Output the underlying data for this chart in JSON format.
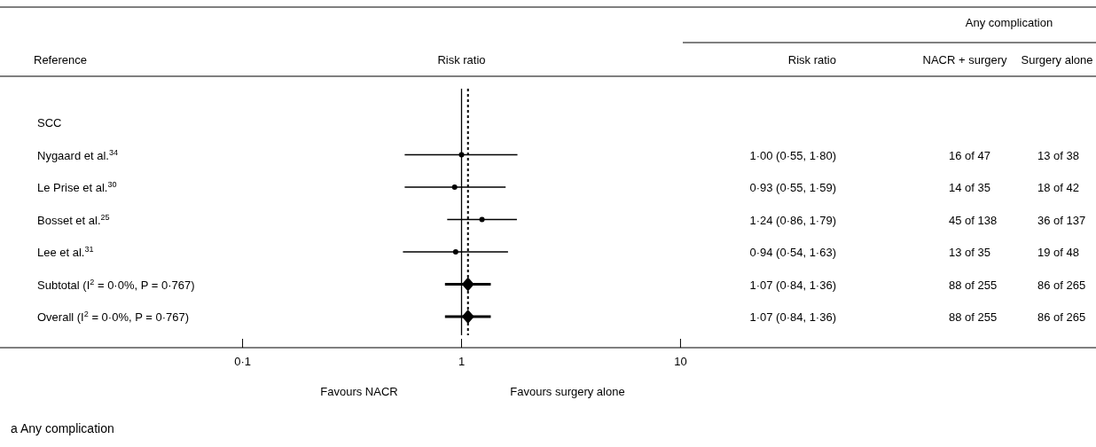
{
  "chart_data": {
    "type": "scatter",
    "orientation": "horizontal",
    "title": "a Any complication",
    "xlabel": "Risk ratio",
    "ylabel": "Reference",
    "categories": [
      "SCC",
      "Nygaard et al.$^{34}$",
      "Le Prise et al.$^{30}$",
      "Bosset et al.$^{25}$",
      "Lee et al.$^{31}$",
      "Subtotal (I$^{2}$ = 0·0%, P = 0·767)",
      "Overall (I$^{2}$ = 0·0%, P = 0·767)"
    ],
    "series": [
      {
        "color": "#000000",
        "marker": "circle",
        "values": [
          null,
          1.0,
          0.93,
          1.24,
          0.94,
          null,
          null
        ],
        "errors": [
          null,
          [
            0.55,
            1.8
          ],
          [
            0.55,
            1.59
          ],
          [
            0.86,
            1.79
          ],
          [
            0.54,
            1.63
          ],
          null,
          null
        ]
      },
      {
        "color": "#000000",
        "marker": "diamond",
        "values": [
          null,
          null,
          null,
          null,
          null,
          1.07,
          1.07
        ],
        "errors": [
          null,
          null,
          null,
          null,
          null,
          [
            0.84,
            1.36
          ],
          [
            0.84,
            1.36
          ]
        ]
      }
    ],
    "log": "x",
    "xlim": [
      0.0078,
      790
    ],
    "xticks": [
      {
        "value": 0.1,
        "label": "0·1"
      },
      1,
      10
    ],
    "ref_lines": [
      {
        "axis": "x",
        "value": 1,
        "line_style": "solid"
      },
      {
        "axis": "x",
        "value": 1.07,
        "line_style": "dotted"
      }
    ],
    "annotations": [
      "Any complication",
      "Risk ratio",
      "NACR + surgery",
      "Surgery alone",
      "1·00 (0·55, 1·80)",
      "16 of 47",
      "13 of 38",
      "0·93 (0·55, 1·59)",
      "14 of 35",
      "18 of 42",
      "1·24 (0·86, 1·79)",
      "45 of 138",
      "36 of 137",
      "0·94 (0·54, 1·63)",
      "13 of 35",
      "19 of 48",
      "1·07 (0·84, 1·36)",
      "88 of 255",
      "86 of 265",
      "1·07 (0·84, 1·36)",
      "88 of 255",
      "86 of 265",
      "Favours NACR",
      "Favours surgery alone"
    ],
    "grid": false
  }
}
